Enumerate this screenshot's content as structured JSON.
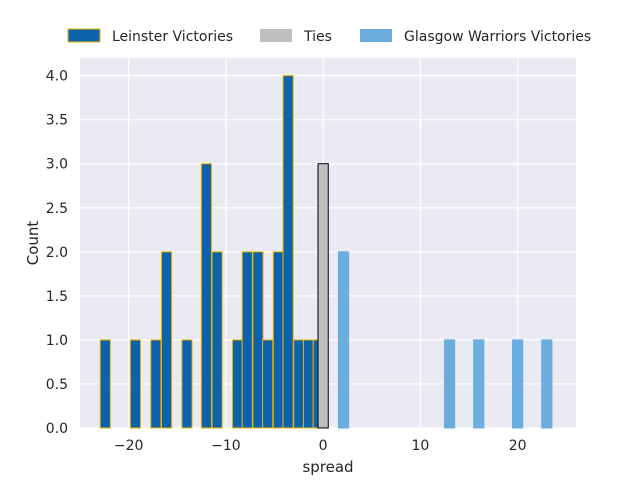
{
  "chart_data": {
    "type": "bar",
    "xlabel": "spread",
    "ylabel": "Count",
    "xlim": [
      -25,
      26
    ],
    "ylim": [
      0,
      4.2
    ],
    "bin_width": 1.05,
    "grid": true,
    "legend_placement": "top",
    "xticks": [
      -20,
      -10,
      0,
      10,
      20
    ],
    "xtick_labels": [
      "−20",
      "−10",
      "0",
      "10",
      "20"
    ],
    "yticks": [
      0.0,
      0.5,
      1.0,
      1.5,
      2.0,
      2.5,
      3.0,
      3.5,
      4.0
    ],
    "ytick_labels": [
      "0.0",
      "0.5",
      "1.0",
      "1.5",
      "2.0",
      "2.5",
      "3.0",
      "3.5",
      "4.0"
    ],
    "series": [
      {
        "name": "Leinster Victories",
        "color": "#0d63ab",
        "edge": "#f2b800",
        "bars": [
          {
            "x": -22.4,
            "count": 1
          },
          {
            "x": -19.3,
            "count": 1
          },
          {
            "x": -17.2,
            "count": 1
          },
          {
            "x": -16.1,
            "count": 2
          },
          {
            "x": -14.0,
            "count": 1
          },
          {
            "x": -12.0,
            "count": 3
          },
          {
            "x": -10.9,
            "count": 2
          },
          {
            "x": -8.8,
            "count": 1
          },
          {
            "x": -7.8,
            "count": 2
          },
          {
            "x": -6.7,
            "count": 2
          },
          {
            "x": -5.7,
            "count": 1
          },
          {
            "x": -4.6,
            "count": 2
          },
          {
            "x": -3.6,
            "count": 4
          },
          {
            "x": -2.5,
            "count": 1
          },
          {
            "x": -1.5,
            "count": 1
          },
          {
            "x": -0.5,
            "count": 1
          }
        ]
      },
      {
        "name": "Ties",
        "color": "#c0c0c0",
        "edge": "#000000",
        "bars": [
          {
            "x": 0.0,
            "count": 3
          }
        ]
      },
      {
        "name": "Glasgow Warriors Victories",
        "color": "#6badde",
        "edge": "#6badde",
        "bars": [
          {
            "x": 2.1,
            "count": 2
          },
          {
            "x": 13.0,
            "count": 1
          },
          {
            "x": 16.0,
            "count": 1
          },
          {
            "x": 20.0,
            "count": 1
          },
          {
            "x": 23.0,
            "count": 1
          }
        ]
      }
    ]
  }
}
